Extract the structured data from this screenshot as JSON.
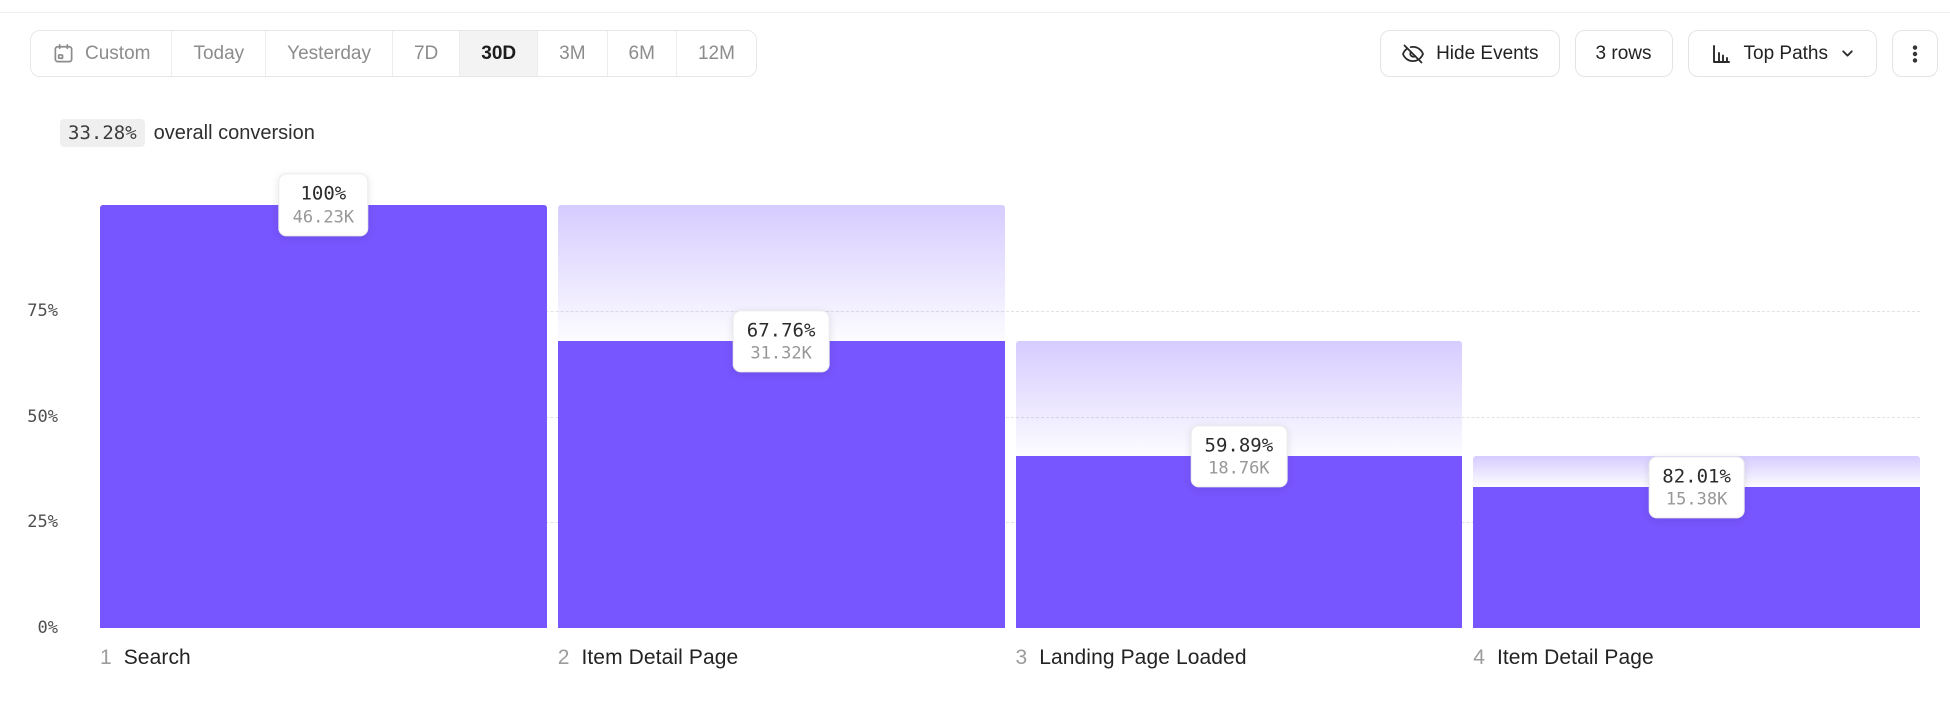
{
  "toolbar": {
    "date_ranges": [
      {
        "label": "Custom",
        "icon": "calendar-icon",
        "active": false
      },
      {
        "label": "Today",
        "active": false
      },
      {
        "label": "Yesterday",
        "active": false
      },
      {
        "label": "7D",
        "active": false
      },
      {
        "label": "30D",
        "active": true
      },
      {
        "label": "3M",
        "active": false
      },
      {
        "label": "6M",
        "active": false
      },
      {
        "label": "12M",
        "active": false
      }
    ],
    "hide_events": {
      "label": "Hide Events",
      "icon": "eye-off-icon"
    },
    "rows": {
      "label": "3 rows"
    },
    "top_paths": {
      "label": "Top Paths",
      "icon": "bar-chart-icon"
    },
    "more_menu": {
      "icon": "kebab-icon"
    }
  },
  "summary": {
    "value": "33.28%",
    "text": "overall conversion"
  },
  "chart_data": {
    "type": "bar",
    "subtype": "funnel",
    "title": "33.28% overall conversion",
    "legend": "none",
    "grid": "dashed horizontal at 25/50/75%",
    "y_axis": {
      "range": [
        0,
        100
      ],
      "ticks": [
        {
          "label": "75%",
          "pct": 75,
          "gridline": true
        },
        {
          "label": "50%",
          "pct": 50,
          "gridline": true
        },
        {
          "label": "25%",
          "pct": 25,
          "gridline": true
        },
        {
          "label": "0%",
          "pct": 0,
          "gridline": false
        }
      ]
    },
    "steps": [
      {
        "num": "1",
        "label": "Search",
        "conversion_label": "100%",
        "count_label": "46.23K",
        "bar_height_pct": 100,
        "prev_bar_height_pct": 100
      },
      {
        "num": "2",
        "label": "Item Detail Page",
        "conversion_label": "67.76%",
        "count_label": "31.32K",
        "bar_height_pct": 67.74,
        "prev_bar_height_pct": 100
      },
      {
        "num": "3",
        "label": "Landing Page Loaded",
        "conversion_label": "59.89%",
        "count_label": "18.76K",
        "bar_height_pct": 40.58,
        "prev_bar_height_pct": 67.74
      },
      {
        "num": "4",
        "label": "Item Detail Page",
        "conversion_label": "82.01%",
        "count_label": "15.38K",
        "bar_height_pct": 33.27,
        "prev_bar_height_pct": 40.58
      }
    ],
    "colors": {
      "bar": "#7856FF",
      "bar_fade_top": "rgba(120,86,255,0.30)",
      "bar_fade_bottom": "rgba(120,86,255,0.02)",
      "gridline": "#e2e2e2"
    }
  }
}
